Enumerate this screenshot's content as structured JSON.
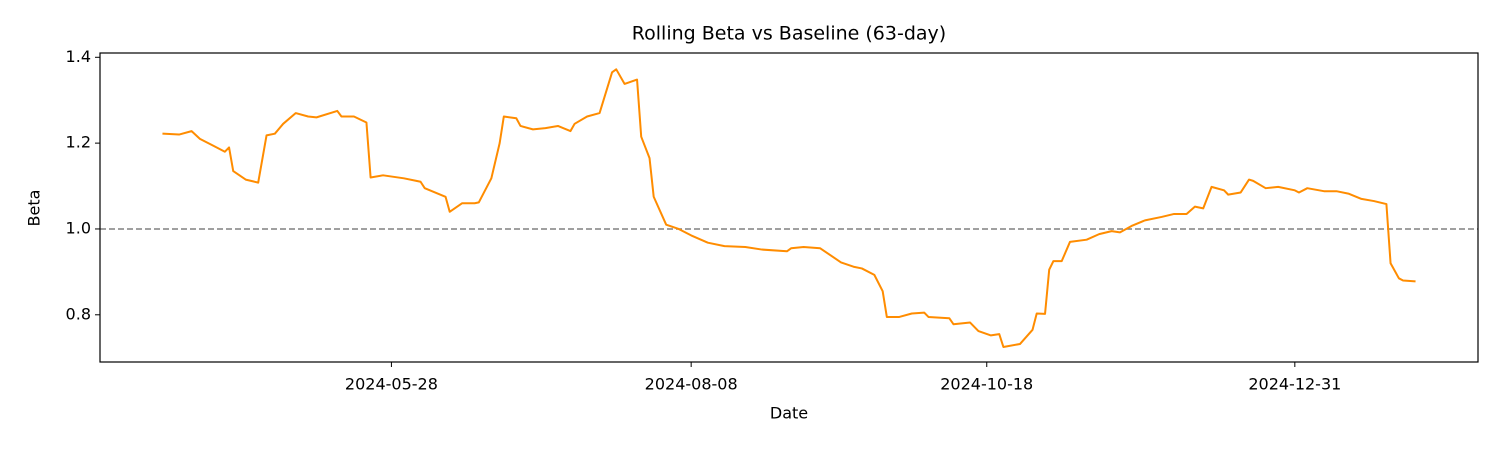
{
  "chart_data": {
    "type": "line",
    "title": "Rolling Beta vs Baseline (63-day)",
    "x_label": "Date",
    "y_label": "Beta",
    "x": [
      "2024-04-03",
      "2024-04-07",
      "2024-04-10",
      "2024-04-12",
      "2024-04-15",
      "2024-04-18",
      "2024-04-19",
      "2024-04-20",
      "2024-04-23",
      "2024-04-26",
      "2024-04-28",
      "2024-04-30",
      "2024-05-02",
      "2024-05-05",
      "2024-05-08",
      "2024-05-10",
      "2024-05-15",
      "2024-05-16",
      "2024-05-19",
      "2024-05-22",
      "2024-05-23",
      "2024-05-26",
      "2024-05-31",
      "2024-06-03",
      "2024-06-04",
      "2024-06-05",
      "2024-06-10",
      "2024-06-11",
      "2024-06-14",
      "2024-06-17",
      "2024-06-18",
      "2024-06-21",
      "2024-06-23",
      "2024-06-24",
      "2024-06-27",
      "2024-06-28",
      "2024-07-01",
      "2024-07-04",
      "2024-07-07",
      "2024-07-10",
      "2024-07-11",
      "2024-07-14",
      "2024-07-17",
      "2024-07-20",
      "2024-07-21",
      "2024-07-23",
      "2024-07-26",
      "2024-07-27",
      "2024-07-29",
      "2024-07-30",
      "2024-08-02",
      "2024-08-05",
      "2024-08-08",
      "2024-08-12",
      "2024-08-16",
      "2024-08-21",
      "2024-08-25",
      "2024-08-31",
      "2024-09-01",
      "2024-09-04",
      "2024-09-08",
      "2024-09-13",
      "2024-09-16",
      "2024-09-18",
      "2024-09-21",
      "2024-09-23",
      "2024-09-24",
      "2024-09-27",
      "2024-09-30",
      "2024-10-03",
      "2024-10-04",
      "2024-10-09",
      "2024-10-10",
      "2024-10-14",
      "2024-10-16",
      "2024-10-19",
      "2024-10-21",
      "2024-10-22",
      "2024-10-26",
      "2024-10-29",
      "2024-10-30",
      "2024-11-01",
      "2024-11-02",
      "2024-11-03",
      "2024-11-05",
      "2024-11-07",
      "2024-11-11",
      "2024-11-14",
      "2024-11-17",
      "2024-11-19",
      "2024-11-22",
      "2024-11-25",
      "2024-11-29",
      "2024-12-02",
      "2024-12-05",
      "2024-12-07",
      "2024-12-09",
      "2024-12-11",
      "2024-12-14",
      "2024-12-15",
      "2024-12-18",
      "2024-12-20",
      "2024-12-21",
      "2024-12-24",
      "2024-12-27",
      "2024-12-31",
      "2025-01-01",
      "2025-01-03",
      "2025-01-07",
      "2025-01-10",
      "2025-01-13",
      "2025-01-16",
      "2025-01-19",
      "2025-01-22",
      "2025-01-23",
      "2025-01-25",
      "2025-01-26",
      "2025-01-29"
    ],
    "series": [
      {
        "color": "#ff8c00",
        "values": [
          1.222,
          1.22,
          1.228,
          1.21,
          1.195,
          1.18,
          1.19,
          1.135,
          1.115,
          1.108,
          1.218,
          1.222,
          1.245,
          1.27,
          1.262,
          1.26,
          1.275,
          1.262,
          1.262,
          1.248,
          1.12,
          1.125,
          1.118,
          1.112,
          1.11,
          1.095,
          1.075,
          1.04,
          1.06,
          1.06,
          1.062,
          1.118,
          1.2,
          1.262,
          1.258,
          1.24,
          1.232,
          1.235,
          1.24,
          1.228,
          1.245,
          1.262,
          1.27,
          1.365,
          1.372,
          1.338,
          1.348,
          1.215,
          1.165,
          1.075,
          1.01,
          1.0,
          0.985,
          0.968,
          0.96,
          0.958,
          0.952,
          0.948,
          0.955,
          0.958,
          0.955,
          0.922,
          0.912,
          0.908,
          0.893,
          0.855,
          0.795,
          0.795,
          0.803,
          0.805,
          0.795,
          0.792,
          0.778,
          0.782,
          0.762,
          0.752,
          0.755,
          0.725,
          0.732,
          0.765,
          0.803,
          0.802,
          0.905,
          0.925,
          0.925,
          0.97,
          0.975,
          0.988,
          0.995,
          0.992,
          1.008,
          1.02,
          1.028,
          1.035,
          1.035,
          1.052,
          1.048,
          1.098,
          1.09,
          1.08,
          1.085,
          1.115,
          1.112,
          1.095,
          1.098,
          1.09,
          1.085,
          1.095,
          1.088,
          1.088,
          1.082,
          1.07,
          1.065,
          1.058,
          0.92,
          0.885,
          0.88,
          0.878
        ]
      }
    ],
    "xlim": [
      "2024-03-19",
      "2025-02-13"
    ],
    "xticks": [
      "2024-05-28",
      "2024-08-08",
      "2024-10-18",
      "2024-12-31"
    ],
    "ylim": [
      0.69,
      1.41
    ],
    "yticks": [
      0.8,
      {
        "value": 1,
        "label": "1.0"
      },
      1.2,
      1.4
    ],
    "hline": {
      "value": 1,
      "color": "#808080",
      "dashed": true
    }
  }
}
